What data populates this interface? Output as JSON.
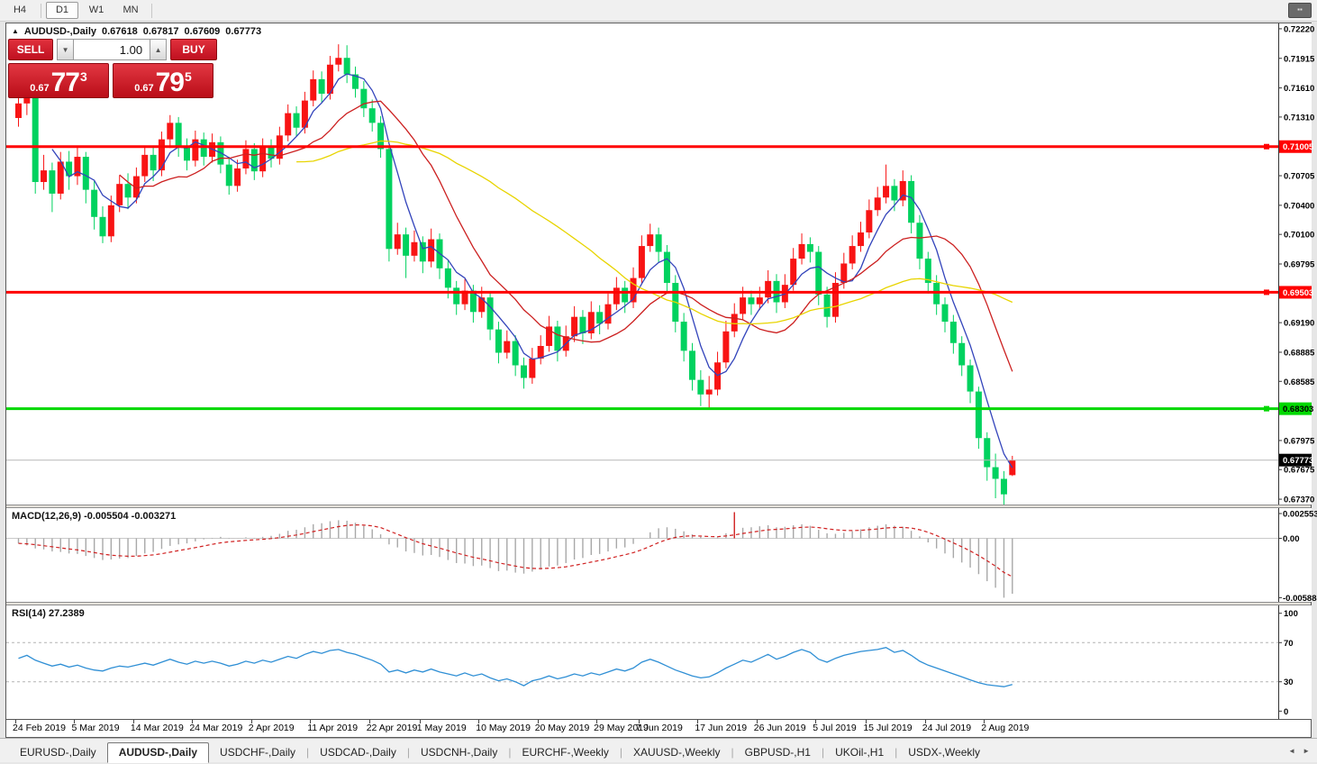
{
  "toolbar": {
    "timeframes": [
      {
        "label": "H4",
        "active": false
      },
      {
        "label": "D1",
        "active": true
      },
      {
        "label": "W1",
        "active": false
      },
      {
        "label": "MN",
        "active": false
      }
    ],
    "window_button_glyph": "▪▪"
  },
  "chart": {
    "arrow_glyph": "▲",
    "title": "AUDUSD-,Daily",
    "open": "0.67618",
    "high": "0.67817",
    "low": "0.67609",
    "close": "0.67773"
  },
  "trade_widget": {
    "sell_label": "SELL",
    "buy_label": "BUY",
    "volume": "1.00",
    "spin_up_glyph": "▲",
    "spin_down_glyph": "▼",
    "sell_price_small": "0.67",
    "sell_price_big": "77",
    "sell_price_sup": "3",
    "buy_price_small": "0.67",
    "buy_price_big": "79",
    "buy_price_sup": "5"
  },
  "macd_panel": {
    "label": "MACD(12,26,9) -0.005504 -0.003271"
  },
  "rsi_panel": {
    "label": "RSI(14) 27.2389"
  },
  "tabs": {
    "items": [
      {
        "label": "EURUSD-,Daily",
        "active": false
      },
      {
        "label": "AUDUSD-,Daily",
        "active": true
      },
      {
        "label": "USDCHF-,Daily",
        "active": false
      },
      {
        "label": "USDCAD-,Daily",
        "active": false
      },
      {
        "label": "USDCNH-,Daily",
        "active": false
      },
      {
        "label": "EURCHF-,Weekly",
        "active": false
      },
      {
        "label": "XAUUSD-,Weekly",
        "active": false
      },
      {
        "label": "GBPUSD-,H1",
        "active": false
      },
      {
        "label": "UKOil-,H1",
        "active": false
      },
      {
        "label": "USDX-,Weekly",
        "active": false
      }
    ],
    "scroll_left_glyph": "◄",
    "scroll_right_glyph": "►"
  },
  "chart_data": {
    "type": "candlestick",
    "symbol": "AUDUSD-",
    "timeframe": "Daily",
    "ylim": [
      0.67315,
      0.72275
    ],
    "bull_color": "#f81414",
    "bear_color": "#00d25f",
    "price_ticks": [
      "0.72220",
      "0.71915",
      "0.71610",
      "0.71310",
      "0.70705",
      "0.70400",
      "0.70100",
      "0.69795",
      "0.69190",
      "0.68885",
      "0.68585",
      "0.67975",
      "0.67675",
      "0.67370"
    ],
    "price_badges": [
      {
        "text": "0.71005",
        "price": 0.71005,
        "bg": "#ff0000",
        "fg": "#ffffff"
      },
      {
        "text": "0.69503",
        "price": 0.69503,
        "bg": "#ff0000",
        "fg": "#ffffff"
      },
      {
        "text": "0.68303",
        "price": 0.68303,
        "bg": "#00d800",
        "fg": "#000000"
      },
      {
        "text": "0.67773",
        "price": 0.67773,
        "bg": "#000000",
        "fg": "#ffffff"
      }
    ],
    "hlines": [
      {
        "price": 0.71005,
        "color": "#ff0000",
        "width": 3,
        "handle": true
      },
      {
        "price": 0.69503,
        "color": "#ff0000",
        "width": 3,
        "handle": true
      },
      {
        "price": 0.68303,
        "color": "#00d800",
        "width": 3,
        "handle": true
      },
      {
        "price": 0.67773,
        "color": "#b8b8b8",
        "width": 1,
        "handle": false
      }
    ],
    "moving_averages": [
      {
        "period": 5,
        "color": "#3344bb"
      },
      {
        "period": 13,
        "color": "#cc2020"
      },
      {
        "period": 34,
        "color": "#e8d400"
      }
    ],
    "candles": [
      [
        0.713,
        0.7164,
        0.7121,
        0.7145
      ],
      [
        0.7145,
        0.7166,
        0.7133,
        0.7152
      ],
      [
        0.7152,
        0.7156,
        0.7052,
        0.7064
      ],
      [
        0.7064,
        0.7092,
        0.7056,
        0.7076
      ],
      [
        0.7076,
        0.7084,
        0.7033,
        0.7052
      ],
      [
        0.7052,
        0.7095,
        0.7046,
        0.7085
      ],
      [
        0.7085,
        0.7096,
        0.7056,
        0.707
      ],
      [
        0.707,
        0.71,
        0.7061,
        0.709
      ],
      [
        0.709,
        0.7095,
        0.7042,
        0.7056
      ],
      [
        0.7056,
        0.7065,
        0.7015,
        0.7028
      ],
      [
        0.7028,
        0.7039,
        0.7001,
        0.7008
      ],
      [
        0.7008,
        0.705,
        0.7002,
        0.704
      ],
      [
        0.704,
        0.7071,
        0.7033,
        0.7062
      ],
      [
        0.7062,
        0.7073,
        0.7036,
        0.7048
      ],
      [
        0.7048,
        0.7079,
        0.7042,
        0.707
      ],
      [
        0.707,
        0.7101,
        0.7064,
        0.7092
      ],
      [
        0.7092,
        0.71,
        0.7065,
        0.7076
      ],
      [
        0.7076,
        0.7116,
        0.707,
        0.7108
      ],
      [
        0.7108,
        0.7133,
        0.7099,
        0.7125
      ],
      [
        0.7125,
        0.7131,
        0.709,
        0.71
      ],
      [
        0.71,
        0.7109,
        0.7076,
        0.7086
      ],
      [
        0.7086,
        0.7117,
        0.708,
        0.7108
      ],
      [
        0.7108,
        0.7115,
        0.7081,
        0.709
      ],
      [
        0.709,
        0.7114,
        0.7084,
        0.7105
      ],
      [
        0.7105,
        0.7111,
        0.7073,
        0.7082
      ],
      [
        0.7082,
        0.709,
        0.7051,
        0.706
      ],
      [
        0.706,
        0.7087,
        0.7054,
        0.7078
      ],
      [
        0.7078,
        0.7107,
        0.7072,
        0.7098
      ],
      [
        0.7098,
        0.7104,
        0.7066,
        0.7075
      ],
      [
        0.7075,
        0.7109,
        0.7069,
        0.71
      ],
      [
        0.71,
        0.7108,
        0.7079,
        0.7088
      ],
      [
        0.7088,
        0.7121,
        0.7082,
        0.7112
      ],
      [
        0.7112,
        0.7144,
        0.7106,
        0.7135
      ],
      [
        0.7135,
        0.7142,
        0.7111,
        0.712
      ],
      [
        0.712,
        0.7157,
        0.7114,
        0.7148
      ],
      [
        0.7148,
        0.7179,
        0.7142,
        0.717
      ],
      [
        0.717,
        0.7178,
        0.7146,
        0.7155
      ],
      [
        0.7155,
        0.7194,
        0.7149,
        0.7185
      ],
      [
        0.7185,
        0.7206,
        0.7178,
        0.7192
      ],
      [
        0.7192,
        0.7205,
        0.7166,
        0.7175
      ],
      [
        0.7175,
        0.7183,
        0.7151,
        0.716
      ],
      [
        0.716,
        0.7168,
        0.7131,
        0.714
      ],
      [
        0.714,
        0.7149,
        0.7116,
        0.7125
      ],
      [
        0.7125,
        0.7132,
        0.7089,
        0.7098
      ],
      [
        0.7098,
        0.7101,
        0.6982,
        0.6995
      ],
      [
        0.6995,
        0.7022,
        0.6989,
        0.701
      ],
      [
        0.701,
        0.7017,
        0.6965,
        0.6988
      ],
      [
        0.6988,
        0.7014,
        0.6982,
        0.7002
      ],
      [
        0.7002,
        0.7008,
        0.697,
        0.6982
      ],
      [
        0.6982,
        0.7016,
        0.6976,
        0.7005
      ],
      [
        0.7005,
        0.7011,
        0.6964,
        0.6975
      ],
      [
        0.6975,
        0.6983,
        0.6944,
        0.6955
      ],
      [
        0.6955,
        0.6962,
        0.6927,
        0.6938
      ],
      [
        0.6938,
        0.6964,
        0.6932,
        0.6952
      ],
      [
        0.6952,
        0.6958,
        0.6919,
        0.693
      ],
      [
        0.693,
        0.6956,
        0.6924,
        0.6945
      ],
      [
        0.6945,
        0.695,
        0.6901,
        0.6912
      ],
      [
        0.6912,
        0.692,
        0.6877,
        0.6888
      ],
      [
        0.6888,
        0.6911,
        0.6882,
        0.69
      ],
      [
        0.69,
        0.6906,
        0.6864,
        0.6875
      ],
      [
        0.6875,
        0.6883,
        0.6851,
        0.6862
      ],
      [
        0.6862,
        0.6893,
        0.6856,
        0.6882
      ],
      [
        0.6882,
        0.6906,
        0.6876,
        0.6895
      ],
      [
        0.6895,
        0.6926,
        0.6889,
        0.6915
      ],
      [
        0.6915,
        0.6921,
        0.6879,
        0.689
      ],
      [
        0.689,
        0.6916,
        0.6884,
        0.6905
      ],
      [
        0.6905,
        0.6936,
        0.6899,
        0.6925
      ],
      [
        0.6925,
        0.6932,
        0.6897,
        0.6908
      ],
      [
        0.6908,
        0.6941,
        0.6902,
        0.693
      ],
      [
        0.693,
        0.6937,
        0.6907,
        0.6918
      ],
      [
        0.6918,
        0.6949,
        0.6912,
        0.6938
      ],
      [
        0.6938,
        0.6966,
        0.6932,
        0.6955
      ],
      [
        0.6955,
        0.6962,
        0.6929,
        0.694
      ],
      [
        0.694,
        0.6976,
        0.6934,
        0.6965
      ],
      [
        0.6965,
        0.7009,
        0.6959,
        0.6998
      ],
      [
        0.6998,
        0.7021,
        0.6992,
        0.701
      ],
      [
        0.701,
        0.7017,
        0.6981,
        0.6992
      ],
      [
        0.6992,
        0.6999,
        0.6949,
        0.696
      ],
      [
        0.696,
        0.6968,
        0.6909,
        0.692
      ],
      [
        0.692,
        0.6929,
        0.6879,
        0.689
      ],
      [
        0.689,
        0.6898,
        0.6849,
        0.686
      ],
      [
        0.686,
        0.687,
        0.6833,
        0.6845
      ],
      [
        0.6845,
        0.6864,
        0.683,
        0.685
      ],
      [
        0.685,
        0.6889,
        0.6844,
        0.6878
      ],
      [
        0.6878,
        0.6921,
        0.6872,
        0.691
      ],
      [
        0.691,
        0.6939,
        0.6904,
        0.6928
      ],
      [
        0.6928,
        0.6956,
        0.6922,
        0.6945
      ],
      [
        0.6945,
        0.6952,
        0.6927,
        0.6938
      ],
      [
        0.6938,
        0.6956,
        0.6932,
        0.6945
      ],
      [
        0.6945,
        0.6973,
        0.6939,
        0.6962
      ],
      [
        0.6962,
        0.6969,
        0.6929,
        0.694
      ],
      [
        0.694,
        0.6969,
        0.6934,
        0.6958
      ],
      [
        0.6958,
        0.6996,
        0.6952,
        0.6985
      ],
      [
        0.6985,
        0.7011,
        0.6979,
        0.7
      ],
      [
        0.7,
        0.7007,
        0.6981,
        0.6992
      ],
      [
        0.6992,
        0.6998,
        0.6937,
        0.6948
      ],
      [
        0.6948,
        0.6956,
        0.6914,
        0.6925
      ],
      [
        0.6925,
        0.6971,
        0.6919,
        0.696
      ],
      [
        0.696,
        0.6991,
        0.6954,
        0.698
      ],
      [
        0.698,
        0.7009,
        0.6974,
        0.6998
      ],
      [
        0.6998,
        0.7023,
        0.6992,
        0.7012
      ],
      [
        0.7012,
        0.7046,
        0.7006,
        0.7035
      ],
      [
        0.7035,
        0.7059,
        0.7029,
        0.7048
      ],
      [
        0.7048,
        0.7082,
        0.7042,
        0.706
      ],
      [
        0.706,
        0.7067,
        0.7034,
        0.7045
      ],
      [
        0.7045,
        0.7076,
        0.7039,
        0.7065
      ],
      [
        0.7065,
        0.7071,
        0.7011,
        0.7022
      ],
      [
        0.7022,
        0.703,
        0.6974,
        0.6985
      ],
      [
        0.6985,
        0.6992,
        0.6949,
        0.696
      ],
      [
        0.696,
        0.6968,
        0.6927,
        0.6938
      ],
      [
        0.6938,
        0.6945,
        0.6909,
        0.692
      ],
      [
        0.692,
        0.6927,
        0.6887,
        0.6898
      ],
      [
        0.6898,
        0.6905,
        0.6864,
        0.6875
      ],
      [
        0.6875,
        0.6881,
        0.6836,
        0.6848
      ],
      [
        0.6848,
        0.6853,
        0.6789,
        0.68
      ],
      [
        0.68,
        0.6806,
        0.6756,
        0.677
      ],
      [
        0.677,
        0.6784,
        0.6738,
        0.6758
      ],
      [
        0.6758,
        0.6766,
        0.6731,
        0.6742
      ],
      [
        0.67618,
        0.67817,
        0.67609,
        0.67773
      ]
    ],
    "macd": {
      "label": "MACD(12,26,9)",
      "value_main": -0.005504,
      "value_signal": -0.003271,
      "ylim": [
        -0.0063,
        0.003
      ],
      "axis_ticks": [
        "0.002553",
        "0.00",
        "-0.005888"
      ],
      "axis_values": [
        0.002553,
        0.0,
        -0.005888
      ],
      "hist_color": "#a8a8a8",
      "signal_color": "#d02020",
      "anomaly_idx": 85,
      "anomaly_color": "#d02020",
      "main": [
        -0.0005,
        -0.0007,
        -0.001,
        -0.0011,
        -0.0013,
        -0.00135,
        -0.0015,
        -0.00155,
        -0.00175,
        -0.00195,
        -0.00215,
        -0.0021,
        -0.002,
        -0.00195,
        -0.00175,
        -0.0015,
        -0.00135,
        -0.00105,
        -0.00075,
        -0.0006,
        -0.0005,
        -0.0003,
        -0.0001,
        5e-05,
        0.00015,
        5e-05,
        0.0,
        0.0001,
        5e-05,
        0.00015,
        0.00025,
        0.00045,
        0.00075,
        0.00085,
        0.0011,
        0.0014,
        0.0015,
        0.0017,
        0.0018,
        0.00175,
        0.00155,
        0.00125,
        0.0009,
        0.0004,
        -0.0006,
        -0.0009,
        -0.0013,
        -0.00145,
        -0.0017,
        -0.00165,
        -0.00185,
        -0.00215,
        -0.00245,
        -0.0025,
        -0.00275,
        -0.0027,
        -0.00295,
        -0.00325,
        -0.0032,
        -0.0034,
        -0.0035,
        -0.0033,
        -0.0031,
        -0.0028,
        -0.0027,
        -0.00245,
        -0.0021,
        -0.00195,
        -0.00165,
        -0.00155,
        -0.0013,
        -0.001,
        -0.0009,
        -0.00055,
        0.0,
        0.0006,
        0.001,
        0.0011,
        0.00095,
        0.0007,
        0.0004,
        0.00015,
        0.0,
        0.0001,
        0.0005,
        0.0026,
        0.00105,
        0.0011,
        0.0012,
        0.0013,
        0.0011,
        0.00115,
        0.0013,
        0.0014,
        0.00125,
        0.00085,
        0.0005,
        0.00045,
        0.00055,
        0.0007,
        0.0009,
        0.0011,
        0.00125,
        0.0014,
        0.00125,
        0.00115,
        0.00075,
        0.0002,
        -0.0004,
        -0.001,
        -0.0015,
        -0.00195,
        -0.0024,
        -0.0029,
        -0.00355,
        -0.00425,
        -0.0049,
        -0.00589,
        -0.0055
      ]
    },
    "rsi": {
      "label": "RSI(14)",
      "value": 27.2389,
      "ylim": [
        -8,
        108
      ],
      "axis_ticks": [
        "100",
        "70",
        "30",
        "0"
      ],
      "axis_values": [
        100,
        70,
        30,
        0
      ],
      "levels": [
        70,
        30
      ],
      "color": "#2f8fd5",
      "values": [
        54,
        57,
        52,
        49,
        46,
        48,
        45,
        47,
        44,
        42,
        41,
        44,
        46,
        45,
        47,
        49,
        47,
        50,
        53,
        50,
        48,
        51,
        49,
        51,
        49,
        46,
        48,
        51,
        49,
        52,
        50,
        53,
        56,
        54,
        58,
        61,
        59,
        62,
        63,
        60,
        58,
        55,
        52,
        48,
        40,
        42,
        39,
        42,
        40,
        43,
        40,
        38,
        36,
        39,
        36,
        38,
        34,
        31,
        33,
        30,
        26,
        31,
        33,
        36,
        33,
        35,
        38,
        36,
        39,
        37,
        40,
        43,
        41,
        44,
        50,
        53,
        50,
        46,
        42,
        39,
        36,
        34,
        35,
        39,
        44,
        48,
        52,
        50,
        54,
        58,
        53,
        56,
        60,
        63,
        60,
        53,
        50,
        54,
        57,
        59,
        61,
        62,
        63,
        65,
        60,
        62,
        57,
        51,
        47,
        44,
        41,
        38,
        35,
        32,
        29,
        27,
        26,
        25,
        27.24
      ]
    },
    "date_labels": [
      {
        "idx": 0,
        "text": "24 Feb 2019"
      },
      {
        "idx": 7,
        "text": "5 Mar 2019"
      },
      {
        "idx": 14,
        "text": "14 Mar 2019"
      },
      {
        "idx": 21,
        "text": "24 Mar 2019"
      },
      {
        "idx": 28,
        "text": "2 Apr 2019"
      },
      {
        "idx": 35,
        "text": "11 Apr 2019"
      },
      {
        "idx": 42,
        "text": "22 Apr 2019"
      },
      {
        "idx": 48,
        "text": "1 May 2019"
      },
      {
        "idx": 55,
        "text": "10 May 2019"
      },
      {
        "idx": 62,
        "text": "20 May 2019"
      },
      {
        "idx": 69,
        "text": "29 May 2019"
      },
      {
        "idx": 74,
        "text": "7 Jun 2019"
      },
      {
        "idx": 81,
        "text": "17 Jun 2019"
      },
      {
        "idx": 88,
        "text": "26 Jun 2019"
      },
      {
        "idx": 95,
        "text": "5 Jul 2019"
      },
      {
        "idx": 101,
        "text": "15 Jul 2019"
      },
      {
        "idx": 108,
        "text": "24 Jul 2019"
      },
      {
        "idx": 115,
        "text": "2 Aug 2019"
      }
    ]
  }
}
